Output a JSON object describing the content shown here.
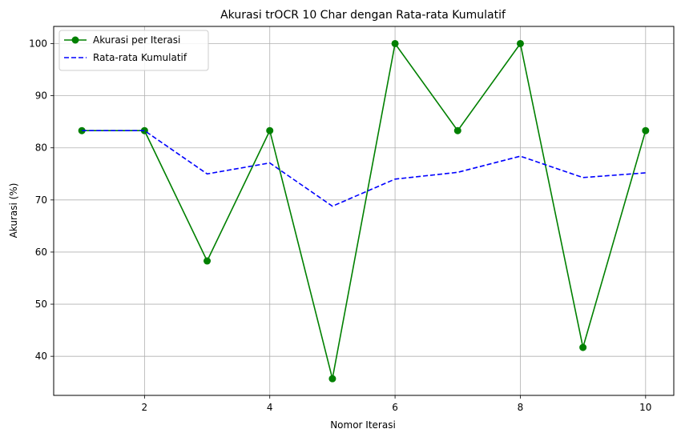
{
  "chart_data": {
    "type": "line",
    "title": "Akurasi trOCR 10 Char dengan Rata-rata Kumulatif",
    "xlabel": "Nomor Iterasi",
    "ylabel": "Akurasi (%)",
    "xlim": [
      0.55,
      10.45
    ],
    "ylim": [
      32.5,
      103.3
    ],
    "xticks": [
      2,
      4,
      6,
      8,
      10
    ],
    "yticks": [
      40,
      50,
      60,
      70,
      80,
      90,
      100
    ],
    "grid": true,
    "legend_position": "top-left",
    "x": [
      1,
      2,
      3,
      4,
      5,
      6,
      7,
      8,
      9,
      10
    ],
    "series": [
      {
        "name": "Akurasi per Iterasi",
        "color": "#008000",
        "style": "solid",
        "marker": "circle",
        "values": [
          83.3,
          83.3,
          58.3,
          83.3,
          35.7,
          100,
          83.3,
          100,
          41.7,
          83.3
        ]
      },
      {
        "name": "Rata-rata Kumulatif",
        "color": "#0000ff",
        "style": "dashed",
        "marker": "none",
        "values": [
          83.3,
          83.3,
          75.0,
          77.1,
          68.8,
          74.0,
          75.3,
          78.4,
          74.3,
          75.2
        ]
      }
    ]
  }
}
